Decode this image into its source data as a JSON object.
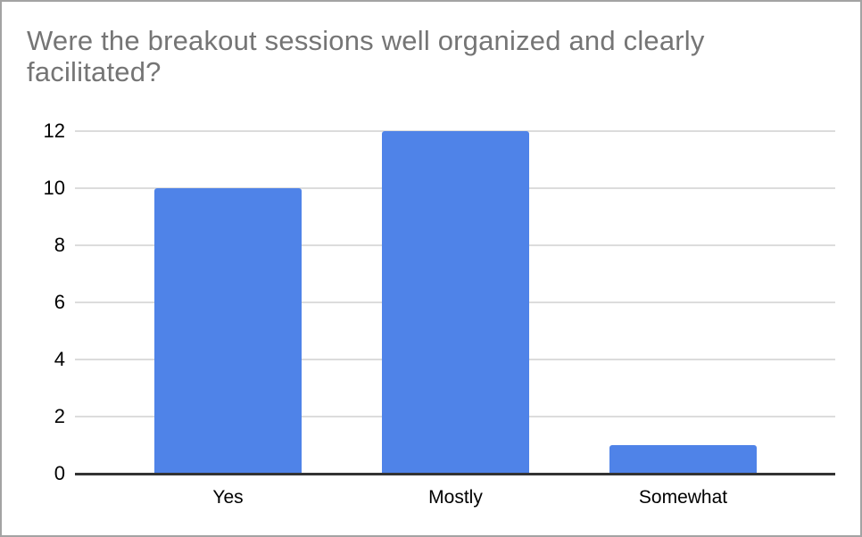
{
  "chart_data": {
    "type": "bar",
    "title": "Were the breakout sessions well organized and clearly facilitated?",
    "categories": [
      "Yes",
      "Mostly",
      "Somewhat"
    ],
    "values": [
      10,
      12,
      1
    ],
    "xlabel": "",
    "ylabel": "",
    "ylim": [
      0,
      12
    ],
    "yticks": [
      0,
      2,
      4,
      6,
      8,
      10,
      12
    ],
    "grid": true,
    "legend": "none",
    "bar_color": "#4f83e8",
    "title_color": "#757575",
    "gridline_color": "#dcdcdc",
    "axis_line_color": "#333333",
    "border_color": "#a3a3a3"
  }
}
